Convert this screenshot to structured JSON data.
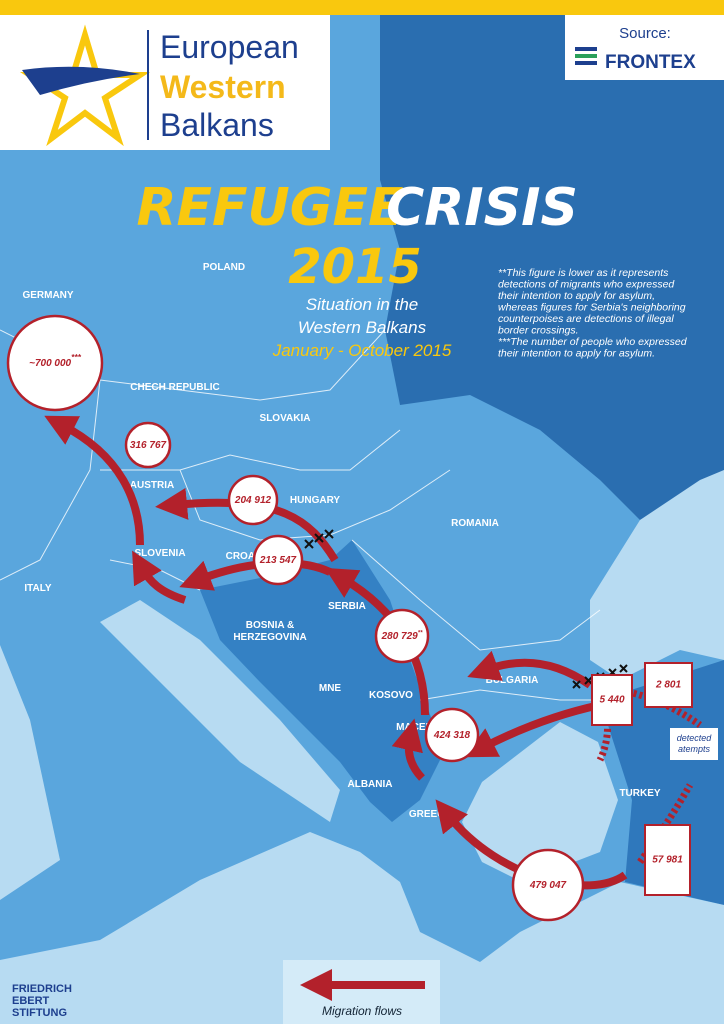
{
  "header": {
    "logo": [
      "European",
      "Western",
      "Balkans"
    ],
    "source_label": "Source:",
    "source": "FRONTEX"
  },
  "title": {
    "word1": "REFUGEE",
    "word2": "CRISIS",
    "year": "2015",
    "subtitle": [
      "Situation in the",
      "Western Balkans"
    ],
    "period": "January - October 2015"
  },
  "notes": [
    [
      "**This figure is lower as it represents",
      "detections of migrants who expressed",
      "their intention to apply for asylum,",
      "whereas figures for Serbia's neighboring",
      "counterpoises are detections of illegal",
      "border crossings."
    ],
    [
      "***The number of people who expressed",
      "their intention to apply for asylum."
    ]
  ],
  "countries": [
    [
      "POLAND"
    ],
    [
      "GERMANY"
    ],
    [
      "CHECH REPUBLIC"
    ],
    [
      "SLOVAKIA"
    ],
    [
      "AUSTRIA"
    ],
    [
      "HUNGARY"
    ],
    [
      "ROMANIA"
    ],
    [
      "SLOVENIA"
    ],
    [
      "CROATIA"
    ],
    [
      "ITALY"
    ],
    [
      "SERBIA"
    ],
    [
      "BOSNIA &",
      "HERZEGOVINA"
    ],
    [
      "MNE"
    ],
    [
      "KOSOVO"
    ],
    [
      "BULGARIA"
    ],
    [
      "MACEDONIA"
    ],
    [
      "ALBANIA"
    ],
    [
      "GREECE"
    ],
    [
      "TURKEY"
    ]
  ],
  "flows": [
    {
      "value": "~700 000",
      "mark": "***"
    },
    {
      "value": "316 767"
    },
    {
      "value": "204 912"
    },
    {
      "value": "213 547"
    },
    {
      "value": "280 729",
      "mark": "**"
    },
    {
      "value": "424 318"
    },
    {
      "value": "479 047"
    }
  ],
  "detections": [
    "2 801",
    "5 440",
    "57 981"
  ],
  "detected_label": [
    "detected",
    "atempts"
  ],
  "legend": "Migration flows",
  "footer": [
    "FRIEDRICH",
    "EBERT",
    "STIFTUNG"
  ]
}
